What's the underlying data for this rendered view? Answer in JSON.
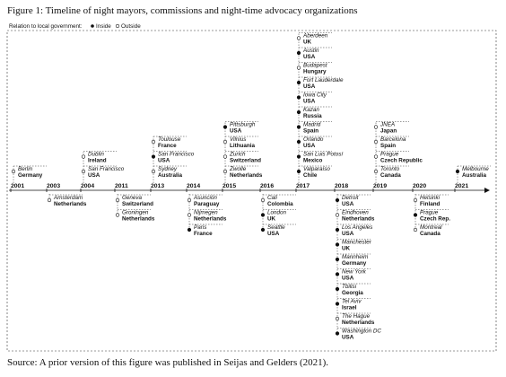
{
  "title": "Figure 1: Timeline of night mayors, commissions and night-time advocacy organizations",
  "legend": {
    "label": "Relation to local government:",
    "inside": "Inside",
    "outside": "Outside"
  },
  "years": [
    {
      "year": "2001",
      "entries": [
        {
          "city": "Berlin",
          "country": "Germany",
          "inside": false
        }
      ]
    },
    {
      "year": "2003",
      "entries": [
        {
          "city": "Amsterdam",
          "country": "Netherlands",
          "inside": false
        }
      ]
    },
    {
      "year": "2004",
      "entries": [
        {
          "city": "Dublin",
          "country": "Ireland",
          "inside": false
        },
        {
          "city": "San Francisco",
          "country": "USA",
          "inside": false
        }
      ]
    },
    {
      "year": "2011",
      "entries": [
        {
          "city": "Geneva",
          "country": "Switzerland",
          "inside": false
        },
        {
          "city": "Groningen",
          "country": "Netherlands",
          "inside": false
        }
      ]
    },
    {
      "year": "2013",
      "entries": [
        {
          "city": "Toulouse",
          "country": "France",
          "inside": false
        },
        {
          "city": "San Francisco",
          "country": "USA",
          "inside": true
        },
        {
          "city": "Sydney",
          "country": "Australia",
          "inside": false
        }
      ]
    },
    {
      "year": "2014",
      "entries": [
        {
          "city": "Asunción",
          "country": "Paraguay",
          "inside": false
        },
        {
          "city": "Nijmegen",
          "country": "Netherlands",
          "inside": false
        },
        {
          "city": "Paris",
          "country": "France",
          "inside": true
        }
      ]
    },
    {
      "year": "2015",
      "entries": [
        {
          "city": "Pittsburgh",
          "country": "USA",
          "inside": true
        },
        {
          "city": "Vilnius",
          "country": "Lithuania",
          "inside": false
        },
        {
          "city": "Zurich",
          "country": "Switzerland",
          "inside": false
        },
        {
          "city": "Zwolle",
          "country": "Netherlands",
          "inside": false
        }
      ]
    },
    {
      "year": "2016",
      "entries": [
        {
          "city": "Cali",
          "country": "Colombia",
          "inside": false
        },
        {
          "city": "London",
          "country": "UK",
          "inside": true
        },
        {
          "city": "Seattle",
          "country": "USA",
          "inside": true
        }
      ]
    },
    {
      "year": "2017",
      "entries": [
        {
          "city": "Aberdeen",
          "country": "UK",
          "inside": false
        },
        {
          "city": "Austin",
          "country": "USA",
          "inside": true
        },
        {
          "city": "Budapest",
          "country": "Hungary",
          "inside": false
        },
        {
          "city": "Fort Lauderdale",
          "country": "USA",
          "inside": true
        },
        {
          "city": "Iowa City",
          "country": "USA",
          "inside": true
        },
        {
          "city": "Kazan",
          "country": "Russia",
          "inside": true
        },
        {
          "city": "Madrid",
          "country": "Spain",
          "inside": true
        },
        {
          "city": "Orlando",
          "country": "USA",
          "inside": true
        },
        {
          "city": "San Luis Potosí",
          "country": "Mexico",
          "inside": true
        },
        {
          "city": "Valparaíso",
          "country": "Chile",
          "inside": true
        }
      ]
    },
    {
      "year": "2018",
      "entries": [
        {
          "city": "Detroit",
          "country": "USA",
          "inside": true
        },
        {
          "city": "Eindhoven",
          "country": "Netherlands",
          "inside": false
        },
        {
          "city": "Los Angeles",
          "country": "USA",
          "inside": true
        },
        {
          "city": "Manchester",
          "country": "UK",
          "inside": true
        },
        {
          "city": "Mannheim",
          "country": "Germany",
          "inside": true
        },
        {
          "city": "New York",
          "country": "USA",
          "inside": true
        },
        {
          "city": "Tbilisi",
          "country": "Georgia",
          "inside": true
        },
        {
          "city": "Tel Aviv",
          "country": "Israel",
          "inside": true
        },
        {
          "city": "The Hague",
          "country": "Netherlands",
          "inside": false
        },
        {
          "city": "Washington DC",
          "country": "USA",
          "inside": true
        }
      ]
    },
    {
      "year": "2019",
      "entries": [
        {
          "city": "JNEA",
          "country": "Japan",
          "inside": false
        },
        {
          "city": "Barcelona",
          "country": "Spain",
          "inside": false
        },
        {
          "city": "Prague",
          "country": "Czech Republic",
          "inside": false
        },
        {
          "city": "Toronto",
          "country": "Canada",
          "inside": false
        }
      ]
    },
    {
      "year": "2020",
      "entries": [
        {
          "city": "Helsinki",
          "country": "Finland",
          "inside": false
        },
        {
          "city": "Prague",
          "country": "Czech Rep.",
          "inside": true
        },
        {
          "city": "Montreal",
          "country": "Canada",
          "inside": false
        }
      ]
    },
    {
      "year": "2021",
      "entries": [
        {
          "city": "Melbourne",
          "country": "Australia",
          "inside": true
        }
      ]
    }
  ],
  "source": "Source: A prior version of this figure was published in Seijas and Gelders (2021)."
}
